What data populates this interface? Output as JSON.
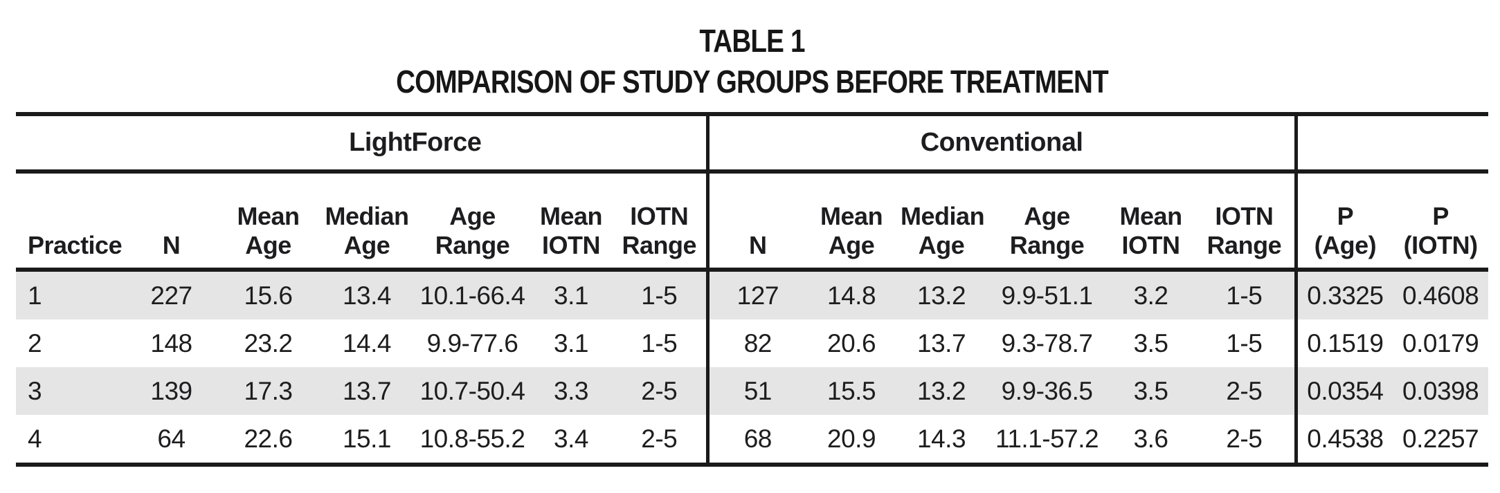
{
  "title": {
    "label": "TABLE 1",
    "text": "COMPARISON OF STUDY GROUPS BEFORE TREATMENT"
  },
  "table": {
    "groups": [
      {
        "label": "LightForce"
      },
      {
        "label": "Conventional"
      }
    ],
    "columns": [
      "Practice",
      "N",
      "Mean\nAge",
      "Median\nAge",
      "Age\nRange",
      "Mean\nIOTN",
      "IOTN\nRange",
      "N",
      "Mean\nAge",
      "Median\nAge",
      "Age\nRange",
      "Mean\nIOTN",
      "IOTN\nRange",
      "P\n(Age)",
      "P\n(IOTN)"
    ],
    "rows": [
      [
        "1",
        "227",
        "15.6",
        "13.4",
        "10.1-66.4",
        "3.1",
        "1-5",
        "127",
        "14.8",
        "13.2",
        "9.9-51.1",
        "3.2",
        "1-5",
        "0.3325",
        "0.4608"
      ],
      [
        "2",
        "148",
        "23.2",
        "14.4",
        "9.9-77.6",
        "3.1",
        "1-5",
        "82",
        "20.6",
        "13.7",
        "9.3-78.7",
        "3.5",
        "1-5",
        "0.1519",
        "0.0179"
      ],
      [
        "3",
        "139",
        "17.3",
        "13.7",
        "10.7-50.4",
        "3.3",
        "2-5",
        "51",
        "15.5",
        "13.2",
        "9.9-36.5",
        "3.5",
        "2-5",
        "0.0354",
        "0.0398"
      ],
      [
        "4",
        "64",
        "22.6",
        "15.1",
        "10.8-55.2",
        "3.4",
        "2-5",
        "68",
        "20.9",
        "14.3",
        "11.1-57.2",
        "3.6",
        "2-5",
        "0.4538",
        "0.2257"
      ]
    ],
    "colors": {
      "stripe": "#e5e5e5",
      "rule": "#1a1a1a",
      "text": "#1d1d1f"
    }
  }
}
